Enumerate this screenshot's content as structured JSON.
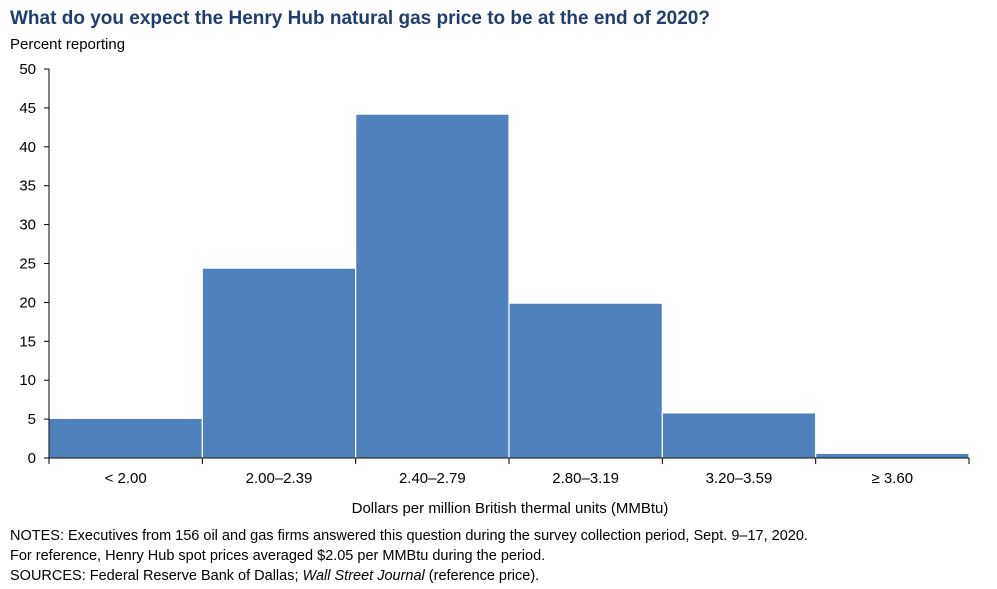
{
  "chart_data": {
    "type": "bar",
    "title": "What do you expect the Henry Hub natural gas price to be at the end of 2020?",
    "ylabel": "Percent reporting",
    "xlabel": "Dollars per million British thermal units (MMBtu)",
    "categories": [
      "< 2.00",
      "2.00–2.39",
      "2.40–2.79",
      "2.80–3.19",
      "3.20–3.59",
      "≥ 3.60"
    ],
    "values": [
      5.1,
      24.4,
      44.2,
      19.9,
      5.8,
      0.6
    ],
    "ylim": [
      0,
      50
    ],
    "yticks": [
      0,
      5,
      10,
      15,
      20,
      25,
      30,
      35,
      40,
      45,
      50
    ],
    "bar_color": "#4f81bd",
    "grid": false,
    "legend": "none"
  },
  "notes": {
    "line1": "NOTES: Executives from 156 oil and gas firms answered this question during the survey collection period, Sept. 9–17, 2020.",
    "line2": "For reference, Henry Hub spot prices averaged $2.05 per MMBtu during the period.",
    "sources_prefix": "SOURCES: Federal Reserve Bank of Dallas; ",
    "sources_italic": "Wall Street Journal",
    "sources_suffix": " (reference price)."
  }
}
